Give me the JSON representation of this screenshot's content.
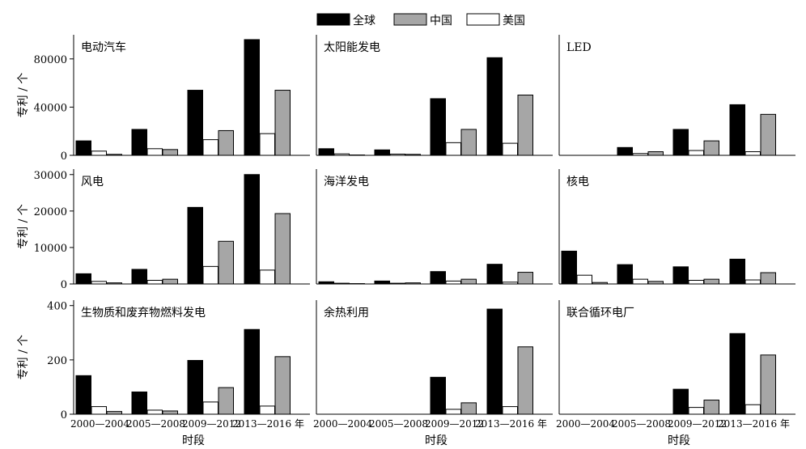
{
  "legend": [
    {
      "name": "全球",
      "color": "#000000"
    },
    {
      "name": "中国",
      "color": "#a6a6a6"
    },
    {
      "name": "美国",
      "color": "#ffffff"
    }
  ],
  "chart_data": [
    {
      "type": "bar",
      "title": "电动汽车",
      "categories": [
        "2000—2004",
        "2005—2008",
        "2009—2012",
        "2013—2016 年"
      ],
      "ylabel": "专利 / 个",
      "xlabel": "时段",
      "ylim": [
        0,
        100000
      ],
      "yticks": [
        0,
        40000,
        80000
      ],
      "series": [
        {
          "name": "全球",
          "values": [
            12000,
            21500,
            54000,
            96000
          ]
        },
        {
          "name": "美国",
          "values": [
            3500,
            5500,
            13000,
            18000
          ]
        },
        {
          "name": "中国",
          "values": [
            800,
            4800,
            20500,
            54000
          ]
        }
      ]
    },
    {
      "type": "bar",
      "title": "太阳能发电",
      "categories": [
        "2000—2004",
        "2005—2008",
        "2009—2012",
        "2013—2016 年"
      ],
      "xlabel": "时段",
      "ylim": [
        0,
        100000
      ],
      "yticks": [],
      "series": [
        {
          "name": "全球",
          "values": [
            5500,
            4500,
            47000,
            81000
          ]
        },
        {
          "name": "美国",
          "values": [
            1200,
            1000,
            10500,
            10000
          ]
        },
        {
          "name": "中国",
          "values": [
            300,
            800,
            21500,
            50000
          ]
        }
      ]
    },
    {
      "type": "bar",
      "title": "LED",
      "categories": [
        "2000—2004",
        "2005—2008",
        "2009—2012",
        "2013—2016 年"
      ],
      "xlabel": "时段",
      "ylim": [
        0,
        100000
      ],
      "yticks": [],
      "series": [
        {
          "name": "全球",
          "values": [
            0,
            6500,
            21500,
            42000
          ]
        },
        {
          "name": "美国",
          "values": [
            0,
            1500,
            4000,
            3000
          ]
        },
        {
          "name": "中国",
          "values": [
            0,
            3000,
            12000,
            34000
          ]
        }
      ]
    },
    {
      "type": "bar",
      "title": "风电",
      "categories": [
        "2000—2004",
        "2005—2008",
        "2009—2012",
        "2013—2016 年"
      ],
      "ylabel": "专利 / 个",
      "xlabel": "时段",
      "ylim": [
        0,
        31500
      ],
      "yticks": [
        0,
        10000,
        20000,
        30000
      ],
      "series": [
        {
          "name": "全球",
          "values": [
            2800,
            4000,
            21000,
            30000
          ]
        },
        {
          "name": "美国",
          "values": [
            700,
            1000,
            4800,
            3800
          ]
        },
        {
          "name": "中国",
          "values": [
            300,
            1300,
            11700,
            19300
          ]
        }
      ]
    },
    {
      "type": "bar",
      "title": "海洋发电",
      "categories": [
        "2000—2004",
        "2005—2008",
        "2009—2012",
        "2013—2016 年"
      ],
      "xlabel": "时段",
      "ylim": [
        0,
        31500
      ],
      "yticks": [],
      "series": [
        {
          "name": "全球",
          "values": [
            600,
            800,
            3400,
            5400
          ]
        },
        {
          "name": "美国",
          "values": [
            200,
            200,
            800,
            500
          ]
        },
        {
          "name": "中国",
          "values": [
            100,
            300,
            1300,
            3200
          ]
        }
      ]
    },
    {
      "type": "bar",
      "title": "核电",
      "categories": [
        "2000—2004",
        "2005—2008",
        "2009—2012",
        "2013—2016 年"
      ],
      "xlabel": "时段",
      "ylim": [
        0,
        31500
      ],
      "yticks": [],
      "series": [
        {
          "name": "全球",
          "values": [
            9000,
            5300,
            4700,
            6800
          ]
        },
        {
          "name": "美国",
          "values": [
            2400,
            1300,
            1000,
            1100
          ]
        },
        {
          "name": "中国",
          "values": [
            400,
            700,
            1300,
            3100
          ]
        }
      ]
    },
    {
      "type": "bar",
      "title": "生物质和废弃物燃料发电",
      "categories": [
        "2000—2004",
        "2005—2008",
        "2009—2012",
        "2013—2016 年"
      ],
      "ylabel": "专利 / 个",
      "xlabel": "时段",
      "ylim": [
        0,
        420
      ],
      "yticks": [
        0,
        200,
        400
      ],
      "series": [
        {
          "name": "全球",
          "values": [
            142,
            82,
            198,
            312
          ]
        },
        {
          "name": "美国",
          "values": [
            28,
            15,
            45,
            30
          ]
        },
        {
          "name": "中国",
          "values": [
            10,
            12,
            98,
            212
          ]
        }
      ]
    },
    {
      "type": "bar",
      "title": "余热利用",
      "categories": [
        "2000—2004",
        "2005—2008",
        "2009—2012",
        "2013—2016 年"
      ],
      "xlabel": "时段",
      "ylim": [
        0,
        420
      ],
      "yticks": [],
      "series": [
        {
          "name": "全球",
          "values": [
            0,
            0,
            136,
            387
          ]
        },
        {
          "name": "美国",
          "values": [
            0,
            0,
            18,
            28
          ]
        },
        {
          "name": "中国",
          "values": [
            0,
            0,
            42,
            248
          ]
        }
      ]
    },
    {
      "type": "bar",
      "title": "联合循环电厂",
      "categories": [
        "2000—2004",
        "2005—2008",
        "2009—2012",
        "2013—2016 年"
      ],
      "xlabel": "时段",
      "ylim": [
        0,
        420
      ],
      "yticks": [],
      "series": [
        {
          "name": "全球",
          "values": [
            0,
            0,
            92,
            297
          ]
        },
        {
          "name": "美国",
          "values": [
            0,
            0,
            25,
            35
          ]
        },
        {
          "name": "中国",
          "values": [
            0,
            0,
            52,
            218
          ]
        }
      ]
    }
  ]
}
